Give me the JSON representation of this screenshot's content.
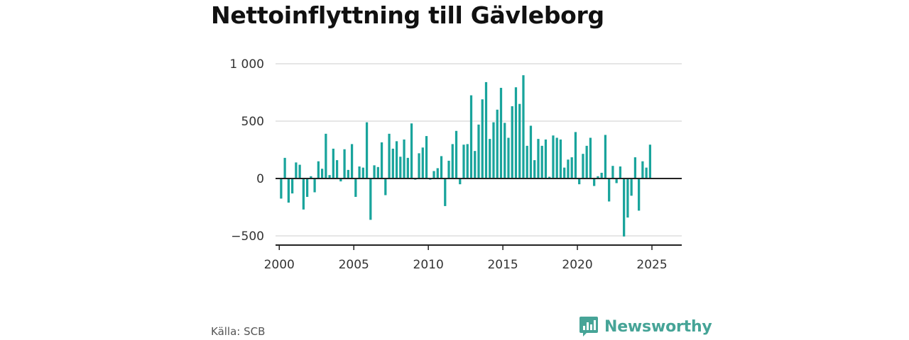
{
  "title": "Nettoinflyttning till Gävleborg",
  "source": "Källa: SCB",
  "brand": {
    "name": "Newsworthy",
    "logo_icon": "bar-chart-speech-bubble-icon"
  },
  "colors": {
    "bar": "#19a49c",
    "grid": "#dddddd",
    "axis": "#222222",
    "brand": "#46a497"
  },
  "chart_data": {
    "type": "bar",
    "title": "Nettoinflyttning till Gävleborg",
    "xlabel": "",
    "ylabel": "",
    "ylim": [
      -580,
      1000
    ],
    "xlim": [
      1999.75,
      2027.0
    ],
    "yticks": [
      {
        "value": 1000,
        "label": "1 000"
      },
      {
        "value": 500,
        "label": "500"
      },
      {
        "value": 0,
        "label": "0"
      },
      {
        "value": -500,
        "label": "−500"
      }
    ],
    "xticks": [
      {
        "value": 2000,
        "label": "2000"
      },
      {
        "value": 2005,
        "label": "2005"
      },
      {
        "value": 2010,
        "label": "2010"
      },
      {
        "value": 2015,
        "label": "2015"
      },
      {
        "value": 2020,
        "label": "2020"
      },
      {
        "value": 2025,
        "label": "2025"
      }
    ],
    "grid": true,
    "legend": "none",
    "start_year": 2000,
    "periods_per_year": 4,
    "values": [
      -175,
      180,
      -210,
      -130,
      140,
      120,
      -270,
      -160,
      20,
      -120,
      150,
      85,
      390,
      30,
      260,
      160,
      -25,
      255,
      75,
      300,
      -160,
      105,
      95,
      490,
      -360,
      115,
      100,
      315,
      -145,
      390,
      260,
      325,
      190,
      340,
      180,
      480,
      -10,
      220,
      270,
      370,
      -10,
      65,
      90,
      195,
      -240,
      155,
      300,
      415,
      -50,
      295,
      300,
      725,
      240,
      470,
      690,
      840,
      345,
      490,
      600,
      790,
      485,
      355,
      630,
      795,
      650,
      900,
      285,
      460,
      160,
      345,
      285,
      340,
      15,
      375,
      355,
      340,
      95,
      165,
      185,
      405,
      -50,
      215,
      285,
      355,
      -65,
      20,
      50,
      380,
      -200,
      110,
      -40,
      105,
      -505,
      -340,
      -150,
      185,
      -280,
      150,
      95,
      295
    ]
  }
}
